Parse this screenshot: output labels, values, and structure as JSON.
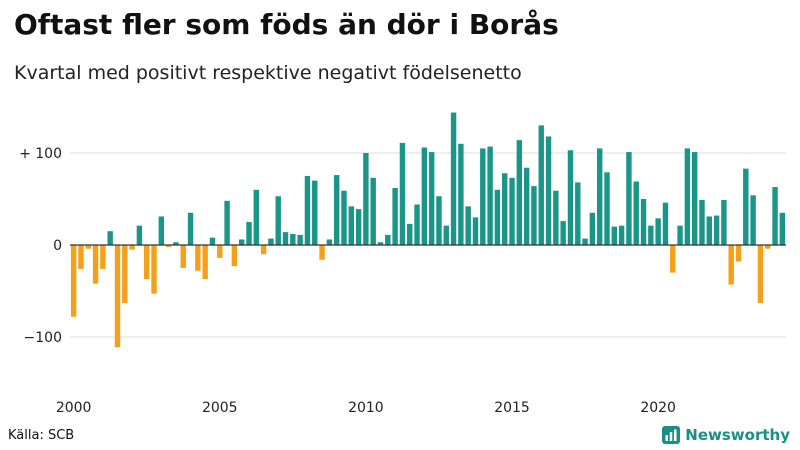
{
  "title": "Oftast fler som föds än dör i Borås",
  "subtitle": "Kvartal med positivt respektive negativt födelsenetto",
  "source": "Källa: SCB",
  "brand": {
    "name": "Newsworthy",
    "icon": "newsworthy-logo-icon"
  },
  "colors": {
    "positive": "#1a9688",
    "negative": "#f5a01a",
    "grid": "#dddddd",
    "zero": "#333333"
  },
  "chart_data": {
    "type": "bar",
    "x_start": "2000 Q1",
    "frequency": "quarterly",
    "ylim": [
      -120,
      145
    ],
    "y_ticks": [
      {
        "value": 100,
        "label": "+ 100"
      },
      {
        "value": 0,
        "label": "0"
      },
      {
        "value": -100,
        "label": "−100"
      }
    ],
    "x_ticks": [
      "2000",
      "2005",
      "2010",
      "2015",
      "2020"
    ],
    "grid": true,
    "values": [
      -78,
      -26,
      -4,
      -42,
      -26,
      15,
      -111,
      -63,
      -5,
      21,
      -37,
      -53,
      31,
      -2,
      3,
      -25,
      35,
      -28,
      -37,
      8,
      -14,
      48,
      -23,
      6,
      25,
      60,
      -10,
      7,
      53,
      14,
      12,
      11,
      75,
      70,
      -16,
      6,
      76,
      59,
      42,
      39,
      100,
      73,
      3,
      11,
      62,
      111,
      23,
      44,
      106,
      101,
      53,
      21,
      144,
      110,
      42,
      30,
      105,
      107,
      60,
      78,
      73,
      114,
      84,
      64,
      130,
      118,
      59,
      26,
      103,
      68,
      7,
      35,
      105,
      79,
      20,
      21,
      101,
      69,
      50,
      21,
      29,
      46,
      -30,
      21,
      105,
      101,
      49,
      31,
      32,
      49,
      -43,
      -18,
      83,
      54,
      -63,
      -4,
      63,
      35
    ]
  }
}
